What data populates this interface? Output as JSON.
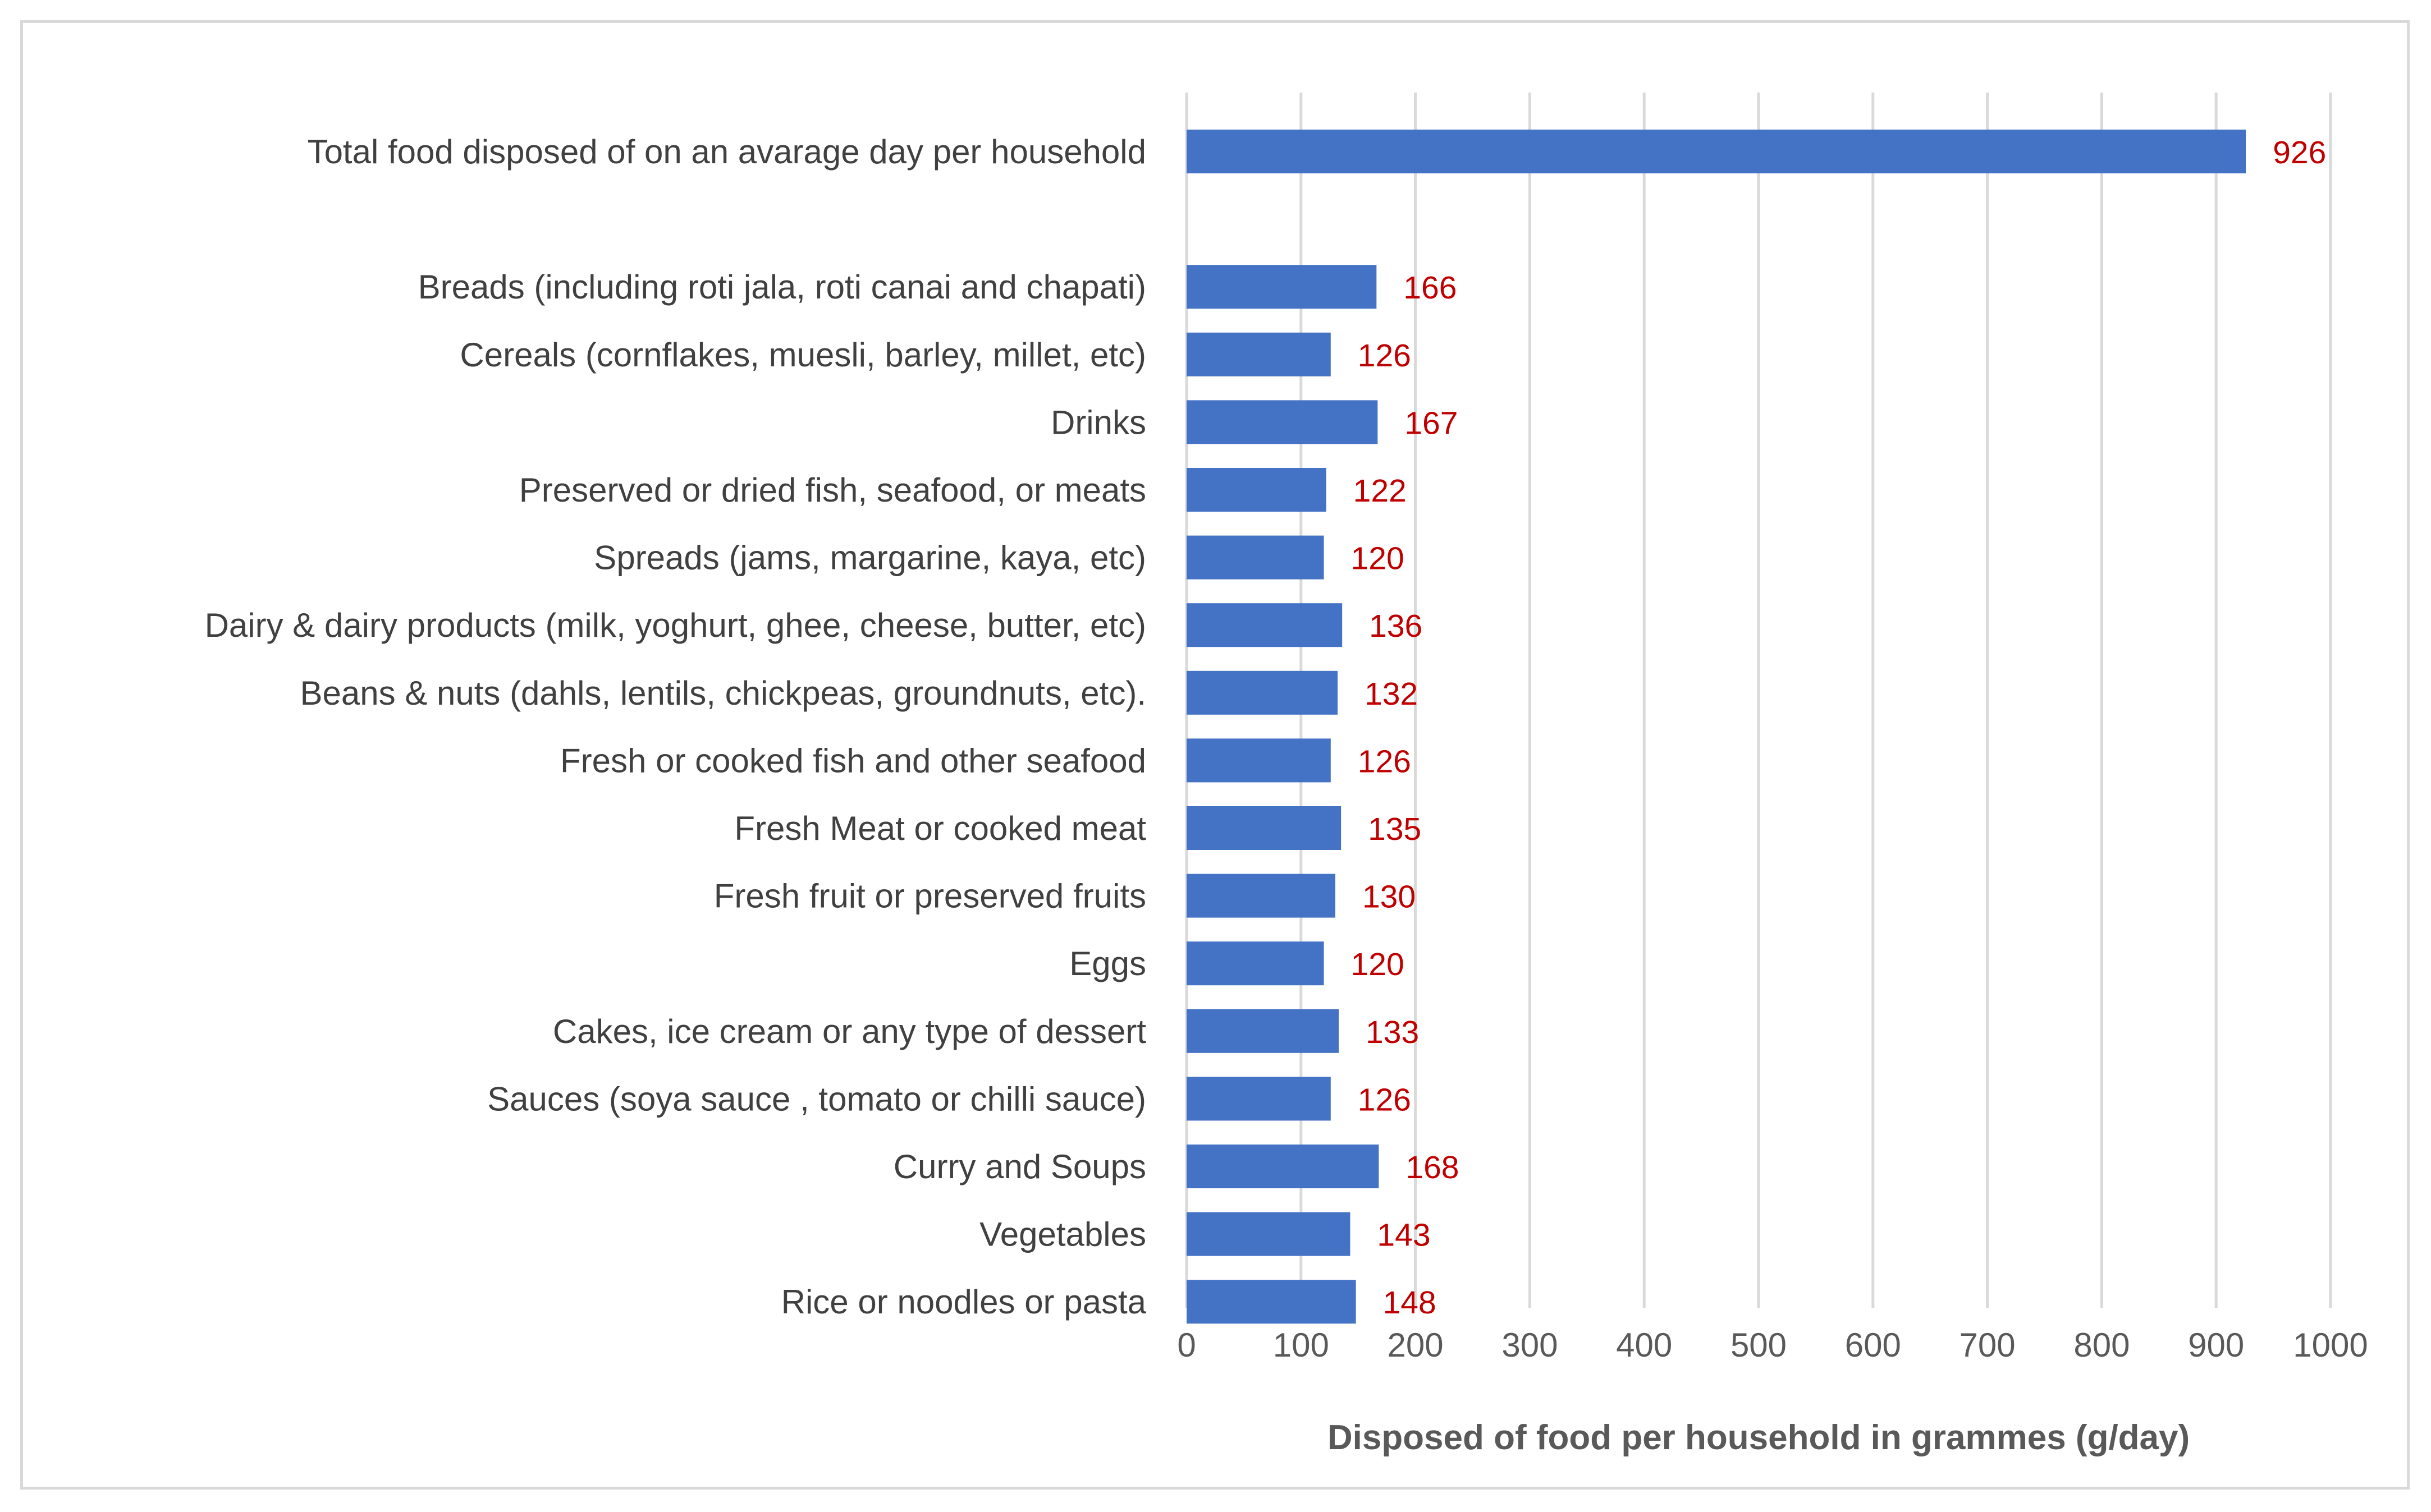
{
  "chart_data": {
    "type": "bar",
    "orientation": "horizontal",
    "title": "",
    "xlabel": "Disposed of food per household in grammes (g/day)",
    "ylabel": "",
    "xlim": [
      0,
      1000
    ],
    "xticks": [
      0,
      100,
      200,
      300,
      400,
      500,
      600,
      700,
      800,
      900,
      1000
    ],
    "grid": "vertical",
    "legend": "none",
    "bar_color": "#4472c4",
    "label_color": "#c00000",
    "categories": [
      "Total food disposed of on an avarage day per household",
      "",
      "Breads (including roti jala, roti canai and chapati)",
      "Cereals (cornflakes, muesli, barley, millet, etc)",
      "Drinks",
      "Preserved or dried fish, seafood, or meats",
      "Spreads (jams, margarine, kaya, etc)",
      "Dairy & dairy products (milk, yoghurt, ghee, cheese, butter, etc)",
      "Beans & nuts (dahls, lentils, chickpeas, groundnuts, etc).",
      "Fresh or cooked fish and other seafood",
      "Fresh Meat or cooked meat",
      "Fresh fruit or preserved fruits",
      "Eggs",
      "Cakes, ice cream or any type of dessert",
      "Sauces (soya sauce , tomato or chilli sauce)",
      "Curry and Soups",
      "Vegetables",
      "Rice or noodles or pasta"
    ],
    "values": [
      926,
      null,
      166,
      126,
      167,
      122,
      120,
      136,
      132,
      126,
      135,
      130,
      120,
      133,
      126,
      168,
      143,
      148
    ]
  }
}
